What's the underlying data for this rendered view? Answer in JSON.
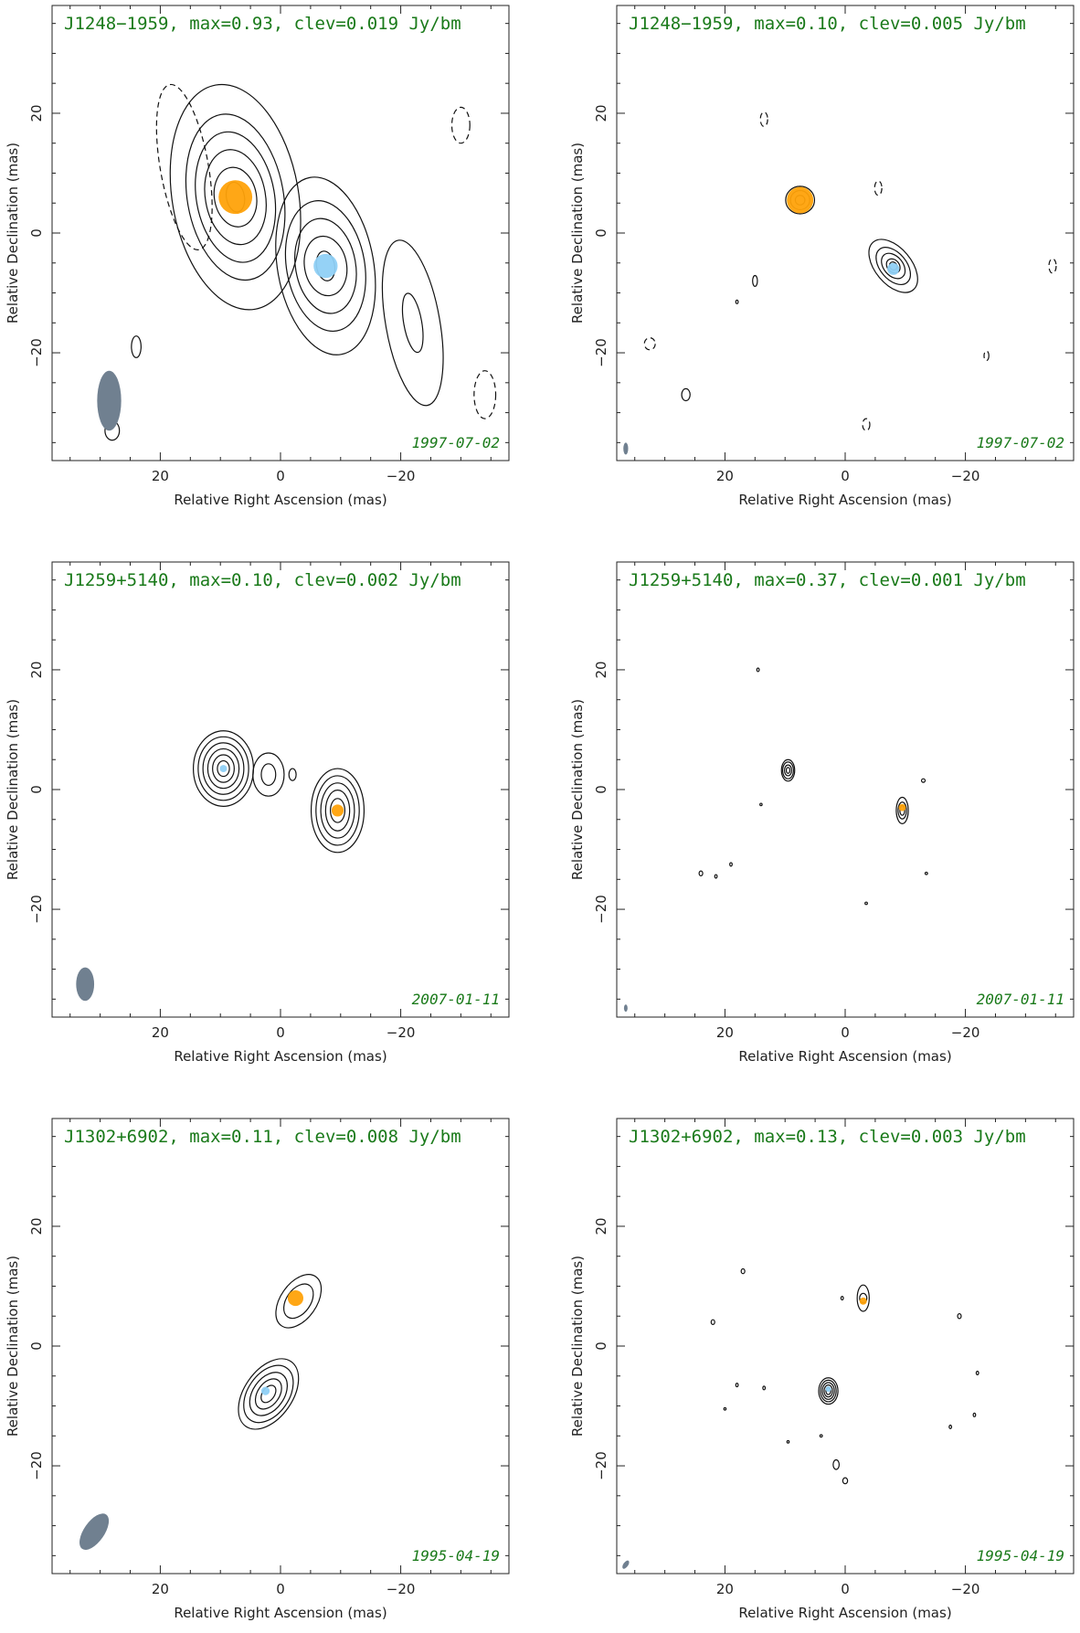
{
  "chart_data": [
    {
      "type": "contour",
      "title": "J1248−1959, max=0.93, clev=0.019 Jy/bm",
      "date": "1997-07-02",
      "xlabel": "Relative Right Ascension (mas)",
      "ylabel": "Relative Declination (mas)",
      "xlim": [
        38,
        -38
      ],
      "ylim": [
        -38,
        38
      ],
      "xticks": [
        20,
        0,
        -20
      ],
      "yticks": [
        20,
        0,
        -20
      ],
      "components": [
        {
          "name": "orange",
          "color": "#ffa20a",
          "x": 7.5,
          "y": 6.0,
          "r": 2.8
        },
        {
          "name": "blue",
          "color": "#8fd0f5",
          "x": -7.5,
          "y": -5.5,
          "r": 2.0
        }
      ],
      "blobs": [
        {
          "x": 7.5,
          "y": 6.0,
          "rx": [
            1.5,
            3.5,
            5,
            6.5,
            8,
            10.5
          ],
          "ry": [
            2.5,
            5,
            8,
            11,
            14,
            19
          ],
          "rot": -10
        },
        {
          "x": -7.5,
          "y": -5.5,
          "rx": [
            1.5,
            3.5,
            5,
            6.5,
            8
          ],
          "ry": [
            2.5,
            5,
            8,
            11,
            15
          ],
          "rot": -10
        },
        {
          "x": -22.0,
          "y": -15.0,
          "rx": [
            1.5,
            4.5
          ],
          "ry": [
            5,
            14
          ],
          "rot": -10
        }
      ],
      "neg": [
        {
          "x": 16.0,
          "y": 11.0,
          "rx": 4,
          "ry": 14,
          "rot": -10
        },
        {
          "x": -30.0,
          "y": 18.0,
          "rx": 1.5,
          "ry": 3,
          "rot": 0
        },
        {
          "x": -34.0,
          "y": -27.0,
          "rx": 1.8,
          "ry": 4,
          "rot": 0
        }
      ],
      "dots": [
        {
          "x": 24,
          "y": -19,
          "rx": 0.8,
          "ry": 1.8
        },
        {
          "x": 28,
          "y": -33,
          "rx": 1.2,
          "ry": 1.6
        }
      ],
      "beam": {
        "x": 28.5,
        "y": -28.0,
        "rx": 2.0,
        "ry": 5.0,
        "rot": 0,
        "color": "#708090"
      }
    },
    {
      "type": "contour",
      "title": "J1248−1959, max=0.10, clev=0.005 Jy/bm",
      "date": "1997-07-02",
      "xlabel": "Relative Right Ascension (mas)",
      "ylabel": "Relative Declination (mas)",
      "xlim": [
        38,
        -38
      ],
      "ylim": [
        -38,
        38
      ],
      "xticks": [
        20,
        0,
        -20
      ],
      "yticks": [
        20,
        0,
        -20
      ],
      "components": [
        {
          "name": "orange",
          "color": "#ffa20a",
          "x": 7.5,
          "y": 5.5,
          "r": 2.2
        },
        {
          "name": "blue",
          "color": "#8fd0f5",
          "x": -8.0,
          "y": -6.0,
          "r": 1.0
        }
      ],
      "blobs": [
        {
          "x": 7.5,
          "y": 5.5,
          "rx": [
            0.8,
            1.6,
            2.4
          ],
          "ry": [
            0.8,
            1.6,
            2.3
          ],
          "rot": 0
        },
        {
          "x": -8.0,
          "y": -5.5,
          "rx": [
            0.6,
            1.0,
            1.6,
            2.2,
            3.0
          ],
          "ry": [
            0.7,
            1.3,
            2.4,
            3.6,
            5.2
          ],
          "rot": -40
        }
      ],
      "neg": [
        {
          "x": 13.5,
          "y": 19.0,
          "rx": 0.6,
          "ry": 1.2,
          "rot": 0
        },
        {
          "x": -5.5,
          "y": 7.5,
          "rx": 0.6,
          "ry": 1.2,
          "rot": 0
        },
        {
          "x": 32.5,
          "y": -18.5,
          "rx": 0.9,
          "ry": 1.0,
          "rot": 0
        },
        {
          "x": -34.5,
          "y": -5.5,
          "rx": 0.6,
          "ry": 1.2,
          "rot": 0
        },
        {
          "x": -23.5,
          "y": -20.5,
          "rx": 0.4,
          "ry": 0.8,
          "rot": 0
        },
        {
          "x": -3.5,
          "y": -32.0,
          "rx": 0.6,
          "ry": 1.0,
          "rot": 0
        }
      ],
      "dots": [
        {
          "x": 15.0,
          "y": -8.0,
          "rx": 0.4,
          "ry": 0.9
        },
        {
          "x": 18.0,
          "y": -11.5,
          "rx": 0.2,
          "ry": 0.3
        },
        {
          "x": 26.5,
          "y": -27.0,
          "rx": 0.7,
          "ry": 1.0
        }
      ],
      "beam": {
        "x": 36.5,
        "y": -36.0,
        "rx": 0.4,
        "ry": 1.0,
        "rot": 0,
        "color": "#708090"
      }
    },
    {
      "type": "contour",
      "title": "J1259+5140, max=0.10, clev=0.002 Jy/bm",
      "date": "2007-01-11",
      "xlabel": "Relative Right Ascension (mas)",
      "ylabel": "Relative Declination (mas)",
      "xlim": [
        38,
        -38
      ],
      "ylim": [
        -38,
        38
      ],
      "xticks": [
        20,
        0,
        -20
      ],
      "yticks": [
        20,
        0,
        -20
      ],
      "components": [
        {
          "name": "blue",
          "color": "#8fd0f5",
          "x": 9.5,
          "y": 3.5,
          "r": 0.6
        },
        {
          "name": "orange",
          "color": "#ffa20a",
          "x": -9.5,
          "y": -3.5,
          "r": 1.0
        }
      ],
      "blobs": [
        {
          "x": 9.5,
          "y": 3.5,
          "rx": [
            1.0,
            1.8,
            2.6,
            3.4,
            4.2,
            5.0
          ],
          "ry": [
            1.3,
            2.3,
            3.3,
            4.3,
            5.3,
            6.3
          ],
          "rot": 0
        },
        {
          "x": 2.0,
          "y": 2.5,
          "rx": [
            1.2,
            2.6
          ],
          "ry": [
            1.8,
            3.6
          ],
          "rot": 0
        },
        {
          "x": -2.0,
          "y": 2.5,
          "rx": [
            0.6
          ],
          "ry": [
            1.0
          ],
          "rot": 0
        },
        {
          "x": -9.5,
          "y": -3.5,
          "rx": [
            1.2,
            2.0,
            2.8,
            3.6,
            4.4
          ],
          "ry": [
            2.0,
            3.4,
            4.6,
            5.8,
            7.0
          ],
          "rot": 0
        }
      ],
      "neg": [],
      "dots": [],
      "beam": {
        "x": 32.5,
        "y": -32.5,
        "rx": 1.5,
        "ry": 2.8,
        "rot": 0,
        "color": "#708090"
      }
    },
    {
      "type": "contour",
      "title": "J1259+5140, max=0.37, clev=0.001 Jy/bm",
      "date": "2007-01-11",
      "xlabel": "Relative Right Ascension (mas)",
      "ylabel": "Relative Declination (mas)",
      "xlim": [
        38,
        -38
      ],
      "ylim": [
        -38,
        38
      ],
      "xticks": [
        20,
        0,
        -20
      ],
      "yticks": [
        20,
        0,
        -20
      ],
      "components": [
        {
          "name": "orange",
          "color": "#ffa20a",
          "x": -9.5,
          "y": -3.0,
          "r": 0.6
        }
      ],
      "blobs": [
        {
          "x": 9.5,
          "y": 3.2,
          "rx": [
            0.3,
            0.6,
            0.9,
            1.1
          ],
          "ry": [
            0.5,
            0.9,
            1.4,
            1.8
          ],
          "rot": 0
        },
        {
          "x": -9.5,
          "y": -3.5,
          "rx": [
            0.4,
            0.7,
            1.0
          ],
          "ry": [
            0.8,
            1.4,
            2.2
          ],
          "rot": 0
        }
      ],
      "neg": [],
      "dots": [
        {
          "x": 14.5,
          "y": 20.0,
          "rx": 0.2,
          "ry": 0.3
        },
        {
          "x": 14.0,
          "y": -2.5,
          "rx": 0.15,
          "ry": 0.2
        },
        {
          "x": 24.0,
          "y": -14.0,
          "rx": 0.3,
          "ry": 0.4
        },
        {
          "x": 21.5,
          "y": -14.5,
          "rx": 0.2,
          "ry": 0.3
        },
        {
          "x": 19.0,
          "y": -12.5,
          "rx": 0.2,
          "ry": 0.3
        },
        {
          "x": -13.0,
          "y": 1.5,
          "rx": 0.3,
          "ry": 0.3
        },
        {
          "x": -13.5,
          "y": -14.0,
          "rx": 0.2,
          "ry": 0.2
        },
        {
          "x": -3.5,
          "y": -19.0,
          "rx": 0.2,
          "ry": 0.2
        }
      ],
      "beam": {
        "x": 36.5,
        "y": -36.5,
        "rx": 0.3,
        "ry": 0.6,
        "rot": 0,
        "color": "#708090"
      }
    },
    {
      "type": "contour",
      "title": "J1302+6902, max=0.11, clev=0.008 Jy/bm",
      "date": "1995-04-19",
      "xlabel": "Relative Right Ascension (mas)",
      "ylabel": "Relative Declination (mas)",
      "xlim": [
        38,
        -38
      ],
      "ylim": [
        -38,
        38
      ],
      "xticks": [
        20,
        0,
        -20
      ],
      "yticks": [
        20,
        0,
        -20
      ],
      "components": [
        {
          "name": "orange",
          "color": "#ffa20a",
          "x": -2.5,
          "y": 8.0,
          "r": 1.3
        },
        {
          "name": "blue",
          "color": "#8fd0f5",
          "x": 2.5,
          "y": -7.5,
          "r": 0.7
        }
      ],
      "blobs": [
        {
          "x": -3.0,
          "y": 7.5,
          "rx": [
            2.0,
            3.0
          ],
          "ry": [
            3.2,
            5.0
          ],
          "rot": 35
        },
        {
          "x": 2.0,
          "y": -8.0,
          "rx": [
            1.0,
            1.8,
            2.6,
            3.4,
            4.0
          ],
          "ry": [
            1.6,
            2.8,
            4.0,
            5.3,
            6.6
          ],
          "rot": 35
        }
      ],
      "neg": [],
      "dots": [],
      "beam": {
        "x": 31.0,
        "y": -31.0,
        "rx": 1.7,
        "ry": 3.5,
        "rot": 35,
        "color": "#708090"
      }
    },
    {
      "type": "contour",
      "title": "J1302+6902, max=0.13, clev=0.003 Jy/bm",
      "date": "1995-04-19",
      "xlabel": "Relative Right Ascension (mas)",
      "ylabel": "Relative Declination (mas)",
      "xlim": [
        38,
        -38
      ],
      "ylim": [
        -38,
        38
      ],
      "xticks": [
        20,
        0,
        -20
      ],
      "yticks": [
        20,
        0,
        -20
      ],
      "components": [
        {
          "name": "orange",
          "color": "#ffa20a",
          "x": -3.0,
          "y": 7.5,
          "r": 0.6
        },
        {
          "name": "blue",
          "color": "#8fd0f5",
          "x": 2.8,
          "y": -7.2,
          "r": 0.4
        }
      ],
      "blobs": [
        {
          "x": -3.0,
          "y": 8.0,
          "rx": [
            0.6,
            1.0
          ],
          "ry": [
            0.8,
            2.2
          ],
          "rot": 0
        },
        {
          "x": 2.8,
          "y": -7.5,
          "rx": [
            0.4,
            0.7,
            1.0,
            1.3,
            1.6
          ],
          "ry": [
            0.6,
            1.0,
            1.4,
            1.8,
            2.2
          ],
          "rot": 0
        },
        {
          "x": 1.5,
          "y": -19.8,
          "rx": [
            0.5
          ],
          "ry": [
            0.8
          ],
          "rot": 0
        }
      ],
      "neg": [],
      "dots": [
        {
          "x": 17.0,
          "y": 12.5,
          "rx": 0.3,
          "ry": 0.4
        },
        {
          "x": 22.0,
          "y": 4.0,
          "rx": 0.3,
          "ry": 0.4
        },
        {
          "x": 0.5,
          "y": 8.0,
          "rx": 0.2,
          "ry": 0.3
        },
        {
          "x": -19.0,
          "y": 5.0,
          "rx": 0.3,
          "ry": 0.4
        },
        {
          "x": -22.0,
          "y": -4.5,
          "rx": 0.2,
          "ry": 0.3
        },
        {
          "x": 18.0,
          "y": -6.5,
          "rx": 0.2,
          "ry": 0.3
        },
        {
          "x": 13.5,
          "y": -7.0,
          "rx": 0.2,
          "ry": 0.3
        },
        {
          "x": 20.0,
          "y": -10.5,
          "rx": 0.1,
          "ry": 0.2
        },
        {
          "x": -21.5,
          "y": -11.5,
          "rx": 0.2,
          "ry": 0.3
        },
        {
          "x": -17.5,
          "y": -13.5,
          "rx": 0.2,
          "ry": 0.3
        },
        {
          "x": 4.0,
          "y": -15.0,
          "rx": 0.2,
          "ry": 0.2
        },
        {
          "x": 9.5,
          "y": -16.0,
          "rx": 0.15,
          "ry": 0.2
        },
        {
          "x": 0.0,
          "y": -22.5,
          "rx": 0.4,
          "ry": 0.5
        }
      ],
      "beam": {
        "x": 36.5,
        "y": -36.5,
        "rx": 0.4,
        "ry": 0.8,
        "rot": 35,
        "color": "#708090"
      }
    }
  ]
}
